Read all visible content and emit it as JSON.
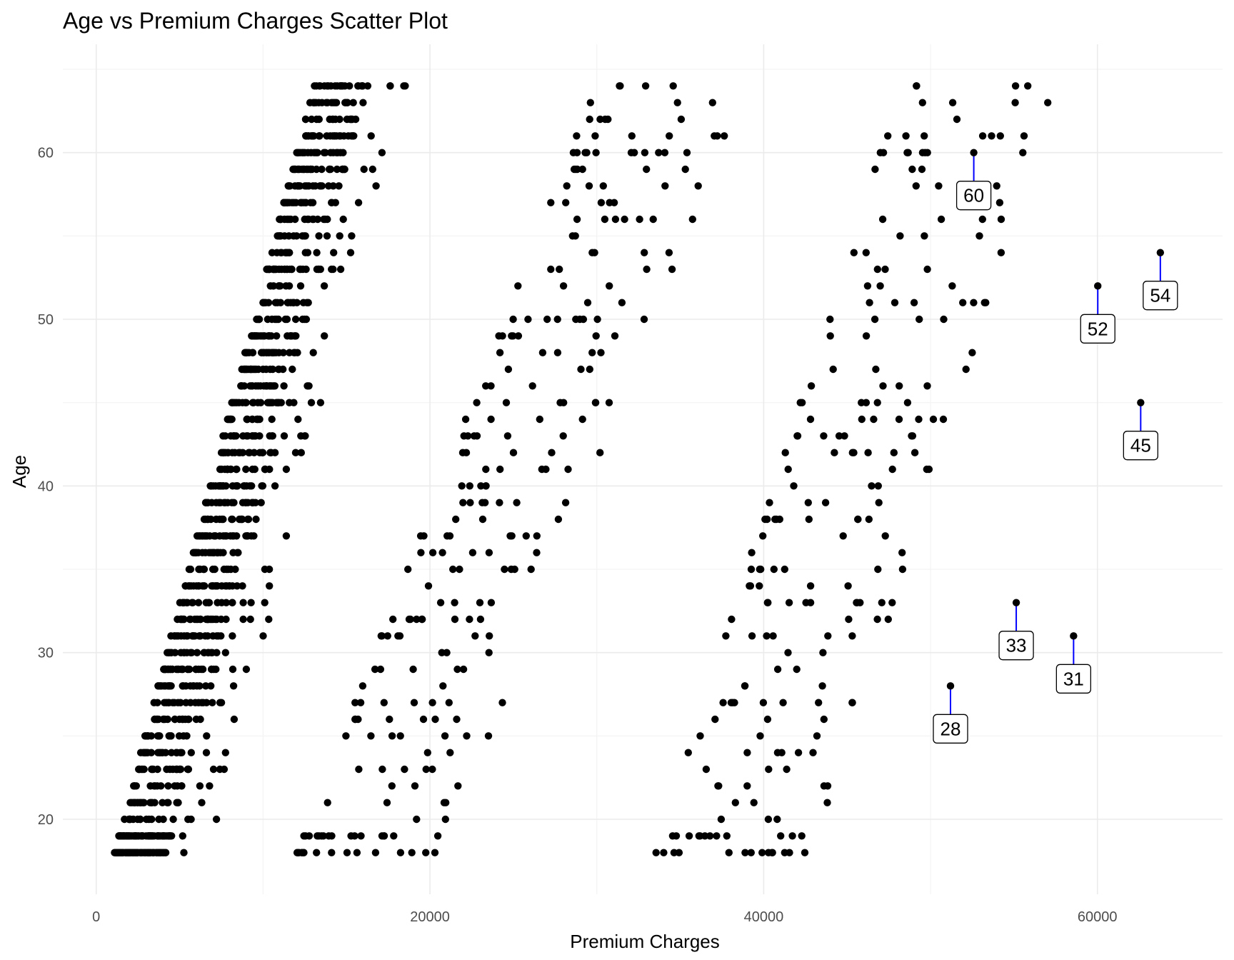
{
  "chart_data": {
    "type": "scatter",
    "title": "Age vs Premium Charges Scatter Plot",
    "xlabel": "Premium Charges",
    "ylabel": "Age",
    "xlim": [
      -2000,
      67500
    ],
    "ylim": [
      15.5,
      66.5
    ],
    "x_ticks": [
      0,
      20000,
      40000,
      60000
    ],
    "x_tick_labels": [
      "0",
      "20000",
      "40000",
      "60000"
    ],
    "y_ticks": [
      20,
      30,
      40,
      50,
      60
    ],
    "y_tick_labels": [
      "20",
      "30",
      "40",
      "50",
      "60"
    ],
    "grid": true,
    "colors": {
      "point": "#000000",
      "grid_major": "#ebebeb",
      "grid_minor": "#f3f3f3",
      "annotation_line": "#0000ff",
      "label_border": "#000000",
      "label_fill": "#ffffff"
    },
    "cluster_bands": [
      {
        "name": "low",
        "age_min": 18,
        "age_max": 64,
        "x_start": 1100,
        "x_slope": 260,
        "spread": 3200,
        "count": 1080,
        "extra_max": 2400,
        "extra_count": 80
      },
      {
        "name": "mid",
        "age_min": 18,
        "age_max": 64,
        "x_start": 12000,
        "x_slope": 390,
        "spread": 9000,
        "count": 260
      },
      {
        "name": "high",
        "age_min": 18,
        "age_max": 64,
        "x_start": 33500,
        "x_slope": 320,
        "spread": 9500,
        "count": 220
      }
    ],
    "highlighted_points": [
      {
        "x": 52590,
        "y": 60,
        "label": "60"
      },
      {
        "x": 60021,
        "y": 52,
        "label": "52"
      },
      {
        "x": 63770,
        "y": 54,
        "label": "54"
      },
      {
        "x": 62593,
        "y": 45,
        "label": "45"
      },
      {
        "x": 55135,
        "y": 33,
        "label": "33"
      },
      {
        "x": 58571,
        "y": 31,
        "label": "31"
      },
      {
        "x": 51195,
        "y": 28,
        "label": "28"
      }
    ]
  }
}
